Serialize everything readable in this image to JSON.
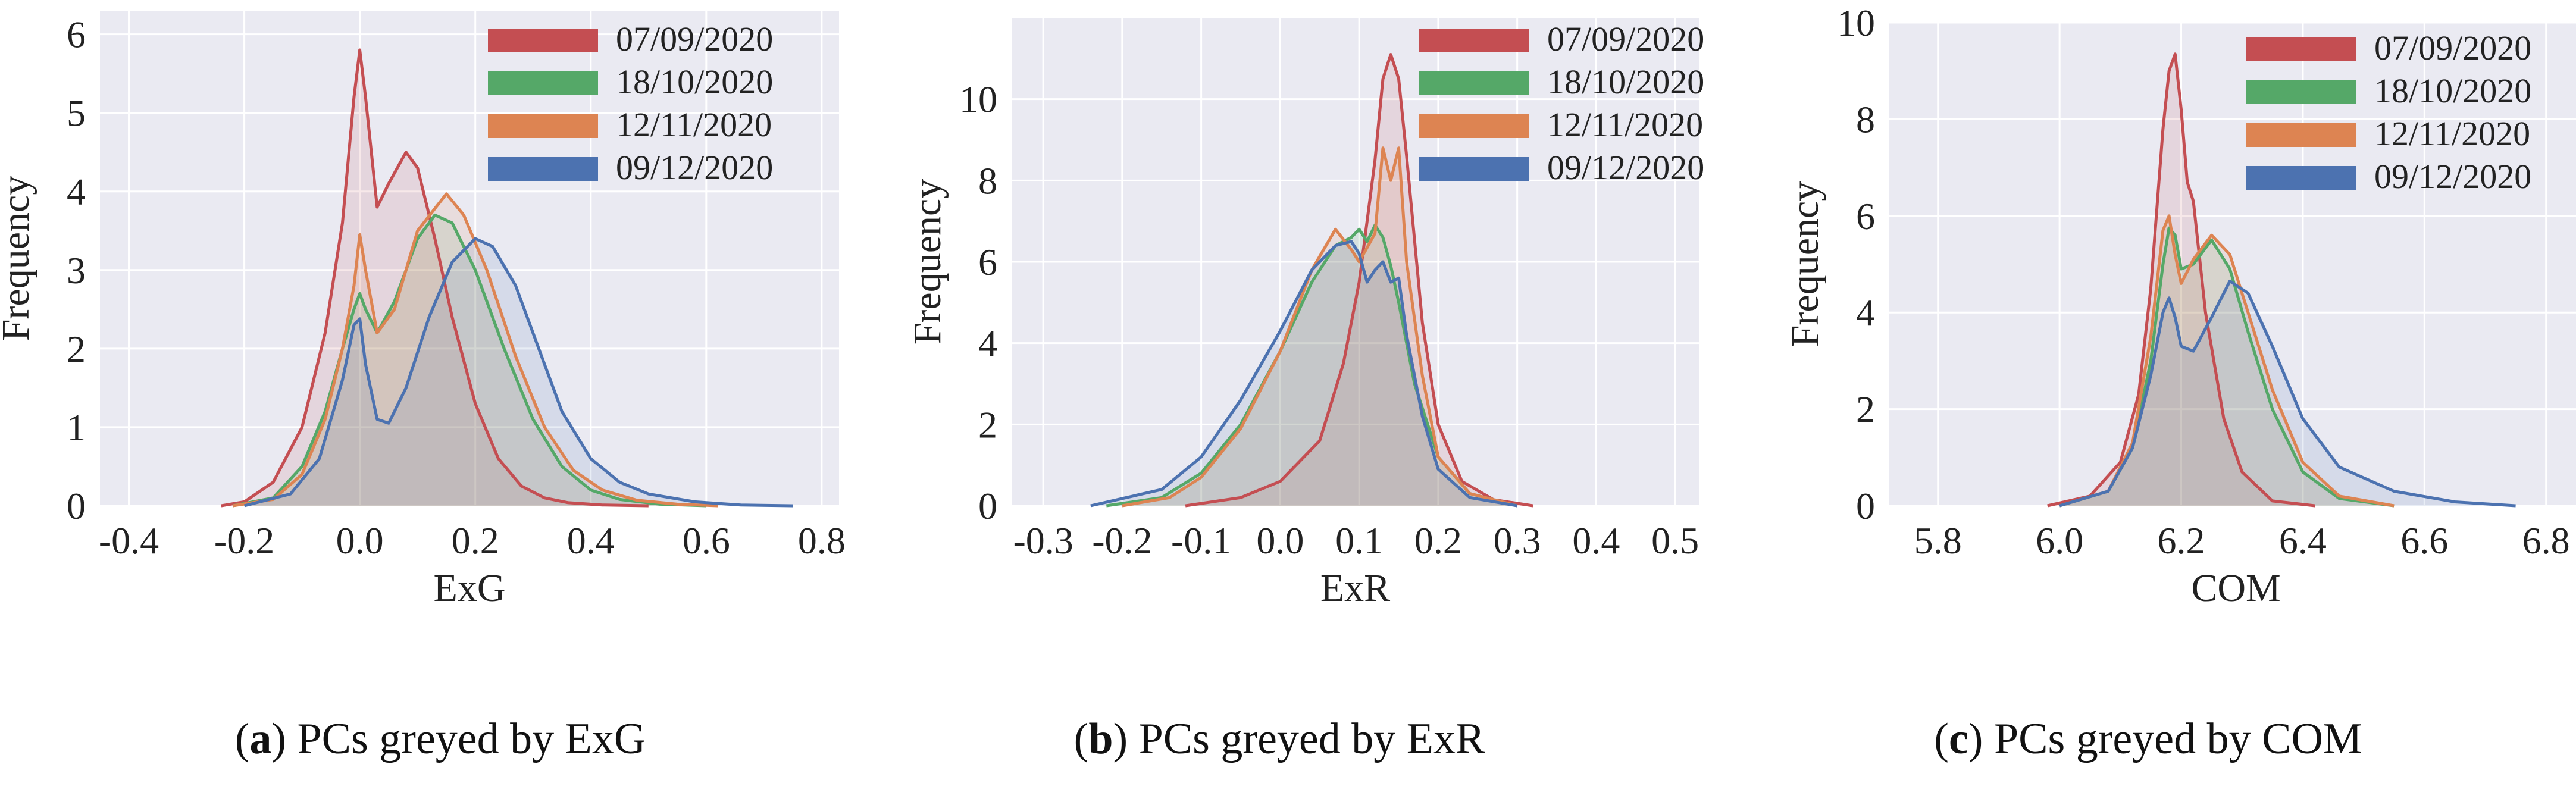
{
  "chart_data": [
    {
      "type": "area",
      "title": "",
      "xlabel": "ExG",
      "ylabel": "Frequency",
      "xlim": [
        -0.45,
        0.83
      ],
      "ylim": [
        0,
        6.3
      ],
      "xticks": [
        -0.4,
        -0.2,
        0.0,
        0.2,
        0.4,
        0.6,
        0.8
      ],
      "xtick_labels": [
        "-0.4",
        "-0.2",
        "0.0",
        "0.2",
        "0.4",
        "0.6",
        "0.8"
      ],
      "yticks": [
        0,
        1,
        2,
        3,
        4,
        5,
        6
      ],
      "ytick_labels": [
        "0",
        "1",
        "2",
        "3",
        "4",
        "5",
        "6"
      ],
      "legend_position": "top-right",
      "caption_letter": "a",
      "caption_text": " PCs greyed by ExG",
      "series": [
        {
          "name": "07/09/2020",
          "color": "#c44e52",
          "x": [
            -0.24,
            -0.2,
            -0.15,
            -0.1,
            -0.06,
            -0.03,
            -0.01,
            0.0,
            0.01,
            0.03,
            0.05,
            0.08,
            0.1,
            0.13,
            0.16,
            0.2,
            0.24,
            0.28,
            0.32,
            0.36,
            0.42,
            0.5
          ],
          "y": [
            0,
            0.05,
            0.3,
            1.0,
            2.2,
            3.6,
            5.2,
            5.8,
            5.2,
            3.8,
            4.1,
            4.5,
            4.3,
            3.4,
            2.4,
            1.3,
            0.6,
            0.25,
            0.1,
            0.04,
            0.01,
            0
          ]
        },
        {
          "name": "18/10/2020",
          "color": "#55a868",
          "x": [
            -0.22,
            -0.15,
            -0.1,
            -0.06,
            -0.03,
            -0.01,
            0.0,
            0.01,
            0.03,
            0.06,
            0.1,
            0.13,
            0.16,
            0.2,
            0.25,
            0.3,
            0.35,
            0.4,
            0.45,
            0.52,
            0.6
          ],
          "y": [
            0,
            0.1,
            0.5,
            1.2,
            2.0,
            2.5,
            2.7,
            2.5,
            2.2,
            2.6,
            3.4,
            3.7,
            3.6,
            3.0,
            2.0,
            1.1,
            0.5,
            0.2,
            0.08,
            0.02,
            0
          ]
        },
        {
          "name": "12/11/2020",
          "color": "#dd8452",
          "x": [
            -0.22,
            -0.15,
            -0.1,
            -0.06,
            -0.03,
            -0.01,
            0.0,
            0.01,
            0.03,
            0.06,
            0.1,
            0.15,
            0.18,
            0.22,
            0.27,
            0.32,
            0.37,
            0.42,
            0.48,
            0.55,
            0.62
          ],
          "y": [
            0,
            0.08,
            0.4,
            1.1,
            2.0,
            2.8,
            3.45,
            3.0,
            2.2,
            2.5,
            3.5,
            3.97,
            3.7,
            3.0,
            1.9,
            1.0,
            0.45,
            0.2,
            0.07,
            0.02,
            0
          ]
        },
        {
          "name": "09/12/2020",
          "color": "#4c72b0",
          "x": [
            -0.2,
            -0.12,
            -0.07,
            -0.03,
            -0.01,
            0.0,
            0.01,
            0.03,
            0.05,
            0.08,
            0.12,
            0.16,
            0.2,
            0.23,
            0.27,
            0.31,
            0.35,
            0.4,
            0.45,
            0.5,
            0.58,
            0.66,
            0.75
          ],
          "y": [
            0,
            0.15,
            0.6,
            1.6,
            2.3,
            2.38,
            1.8,
            1.1,
            1.05,
            1.5,
            2.4,
            3.1,
            3.4,
            3.3,
            2.8,
            2.0,
            1.2,
            0.6,
            0.3,
            0.15,
            0.05,
            0.01,
            0
          ]
        }
      ]
    },
    {
      "type": "area",
      "title": "",
      "xlabel": "ExR",
      "ylabel": "Frequency",
      "xlim": [
        -0.34,
        0.53
      ],
      "ylim": [
        0,
        12
      ],
      "xticks": [
        -0.3,
        -0.2,
        -0.1,
        0.0,
        0.1,
        0.2,
        0.3,
        0.4,
        0.5
      ],
      "xtick_labels": [
        "-0.3",
        "-0.2",
        "-0.1",
        "0.0",
        "0.1",
        "0.2",
        "0.3",
        "0.4",
        "0.5"
      ],
      "yticks": [
        0,
        2,
        4,
        6,
        8,
        10
      ],
      "ytick_labels": [
        "0",
        "2",
        "4",
        "6",
        "8",
        "10"
      ],
      "legend_position": "top-right",
      "caption_letter": "b",
      "caption_text": " PCs greyed by ExR",
      "series": [
        {
          "name": "07/09/2020",
          "color": "#c44e52",
          "x": [
            -0.12,
            -0.05,
            0.0,
            0.05,
            0.08,
            0.1,
            0.12,
            0.13,
            0.14,
            0.15,
            0.16,
            0.18,
            0.2,
            0.23,
            0.27,
            0.32
          ],
          "y": [
            0,
            0.2,
            0.6,
            1.6,
            3.5,
            5.5,
            8.5,
            10.5,
            11.1,
            10.5,
            8.6,
            4.5,
            2.0,
            0.6,
            0.15,
            0
          ]
        },
        {
          "name": "18/10/2020",
          "color": "#55a868",
          "x": [
            -0.22,
            -0.15,
            -0.1,
            -0.05,
            0.0,
            0.04,
            0.07,
            0.09,
            0.1,
            0.11,
            0.12,
            0.13,
            0.14,
            0.15,
            0.17,
            0.2,
            0.24,
            0.3
          ],
          "y": [
            0,
            0.2,
            0.8,
            2.0,
            3.8,
            5.5,
            6.4,
            6.6,
            6.8,
            6.5,
            6.9,
            6.6,
            5.9,
            5.0,
            3.0,
            1.2,
            0.3,
            0
          ]
        },
        {
          "name": "12/11/2020",
          "color": "#dd8452",
          "x": [
            -0.2,
            -0.14,
            -0.1,
            -0.05,
            0.0,
            0.04,
            0.07,
            0.09,
            0.1,
            0.12,
            0.13,
            0.14,
            0.15,
            0.16,
            0.18,
            0.2,
            0.24,
            0.3
          ],
          "y": [
            0,
            0.2,
            0.7,
            1.9,
            3.8,
            5.8,
            6.8,
            6.3,
            6.0,
            6.7,
            8.8,
            8.0,
            8.8,
            6.0,
            3.2,
            1.2,
            0.3,
            0
          ]
        },
        {
          "name": "09/12/2020",
          "color": "#4c72b0",
          "x": [
            -0.24,
            -0.15,
            -0.1,
            -0.05,
            0.0,
            0.04,
            0.07,
            0.09,
            0.1,
            0.11,
            0.12,
            0.13,
            0.14,
            0.15,
            0.16,
            0.18,
            0.2,
            0.24,
            0.3
          ],
          "y": [
            0,
            0.4,
            1.2,
            2.6,
            4.3,
            5.8,
            6.4,
            6.5,
            6.2,
            5.5,
            5.8,
            6.0,
            5.5,
            5.6,
            4.2,
            2.2,
            0.9,
            0.2,
            0
          ]
        }
      ]
    },
    {
      "type": "area",
      "title": "",
      "xlabel": "COM",
      "ylabel": "Frequency",
      "xlim": [
        5.72,
        6.86
      ],
      "ylim": [
        0,
        10
      ],
      "xticks": [
        5.8,
        6.0,
        6.2,
        6.4,
        6.6,
        6.8
      ],
      "xtick_labels": [
        "5.8",
        "6.0",
        "6.2",
        "6.4",
        "6.6",
        "6.8"
      ],
      "yticks": [
        0,
        2,
        4,
        6,
        8,
        10
      ],
      "ytick_labels": [
        "0",
        "2",
        "4",
        "6",
        "8",
        "10"
      ],
      "legend_position": "top-right",
      "caption_letter": "c",
      "caption_text": " PCs greyed by COM",
      "series": [
        {
          "name": "07/09/2020",
          "color": "#c44e52",
          "x": [
            5.98,
            6.05,
            6.1,
            6.13,
            6.15,
            6.17,
            6.18,
            6.19,
            6.2,
            6.21,
            6.22,
            6.24,
            6.27,
            6.3,
            6.35,
            6.42
          ],
          "y": [
            0,
            0.2,
            0.9,
            2.3,
            4.5,
            7.8,
            9.0,
            9.35,
            8.2,
            6.7,
            6.3,
            4.0,
            1.8,
            0.7,
            0.1,
            0
          ]
        },
        {
          "name": "18/10/2020",
          "color": "#55a868",
          "x": [
            6.0,
            6.08,
            6.12,
            6.15,
            6.17,
            6.18,
            6.19,
            6.2,
            6.22,
            6.25,
            6.28,
            6.31,
            6.35,
            6.4,
            6.46,
            6.55
          ],
          "y": [
            0,
            0.3,
            1.2,
            3.0,
            5.0,
            5.75,
            5.6,
            4.9,
            5.0,
            5.5,
            4.9,
            3.6,
            2.0,
            0.7,
            0.15,
            0
          ]
        },
        {
          "name": "12/11/2020",
          "color": "#dd8452",
          "x": [
            6.0,
            6.08,
            6.12,
            6.15,
            6.17,
            6.18,
            6.19,
            6.2,
            6.22,
            6.25,
            6.28,
            6.31,
            6.35,
            6.4,
            6.46,
            6.55
          ],
          "y": [
            0,
            0.3,
            1.3,
            3.5,
            5.7,
            6.0,
            5.2,
            4.6,
            5.1,
            5.6,
            5.2,
            4.0,
            2.4,
            0.9,
            0.2,
            0
          ]
        },
        {
          "name": "09/12/2020",
          "color": "#4c72b0",
          "x": [
            6.0,
            6.08,
            6.12,
            6.15,
            6.17,
            6.18,
            6.19,
            6.2,
            6.22,
            6.25,
            6.28,
            6.31,
            6.35,
            6.4,
            6.46,
            6.55,
            6.65,
            6.75
          ],
          "y": [
            0,
            0.3,
            1.2,
            2.7,
            4.0,
            4.3,
            3.9,
            3.3,
            3.2,
            3.9,
            4.65,
            4.4,
            3.3,
            1.8,
            0.8,
            0.3,
            0.08,
            0
          ]
        }
      ]
    }
  ]
}
